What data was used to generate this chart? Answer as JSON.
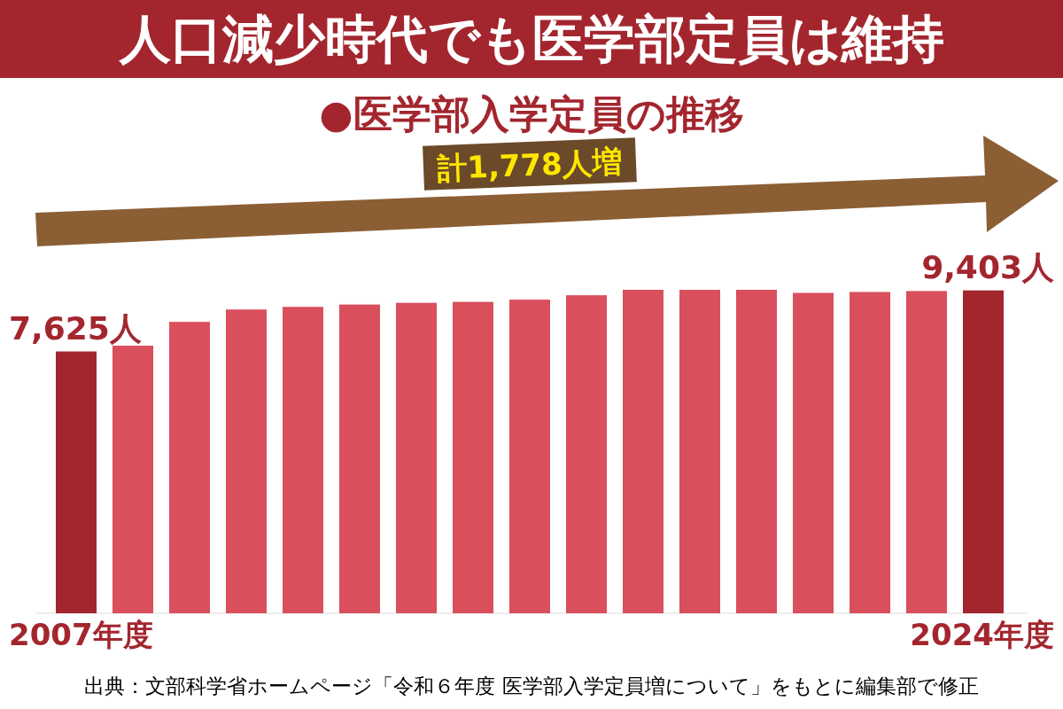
{
  "chart_data": {
    "type": "bar",
    "title": "人口減少時代でも医学部定員は維持",
    "subtitle": "●医学部入学定員の推移",
    "categories": [
      "2007年度",
      null,
      null,
      null,
      null,
      null,
      null,
      null,
      null,
      null,
      null,
      null,
      null,
      null,
      null,
      null,
      "2024年度"
    ],
    "values": [
      7625,
      7793,
      8486,
      8846,
      8923,
      8991,
      9041,
      9069,
      9134,
      9262,
      9420,
      9419,
      9420,
      9330,
      9357,
      9384,
      9403
    ],
    "value_labels": [
      "7,625人",
      null,
      null,
      null,
      null,
      null,
      null,
      null,
      null,
      null,
      null,
      null,
      null,
      null,
      null,
      null,
      "9,403人"
    ],
    "colors": [
      "#a3262e",
      "#d94f5c",
      "#d94f5c",
      "#d94f5c",
      "#d94f5c",
      "#d94f5c",
      "#d94f5c",
      "#d94f5c",
      "#d94f5c",
      "#d94f5c",
      "#d94f5c",
      "#d94f5c",
      "#d94f5c",
      "#d94f5c",
      "#d94f5c",
      "#d94f5c",
      "#a3262e"
    ],
    "annotations": [
      "計1,778人増",
      "出典：文部科学省ホームページ「令和６年度 医学部入学定員増について」をもとに編集部で修正"
    ]
  }
}
